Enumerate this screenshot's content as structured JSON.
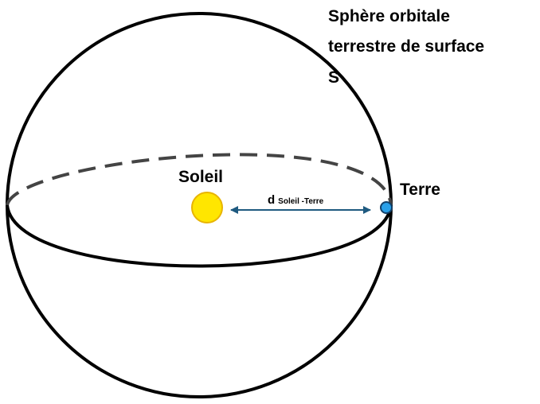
{
  "sphere_label": [
    "Sphère orbitale",
    "terrestre de surface",
    "S"
  ],
  "sun_label": "Soleil",
  "earth_label": "Terre",
  "distance_label": {
    "main": "d",
    "subscript": "Soleil -Terre"
  }
}
